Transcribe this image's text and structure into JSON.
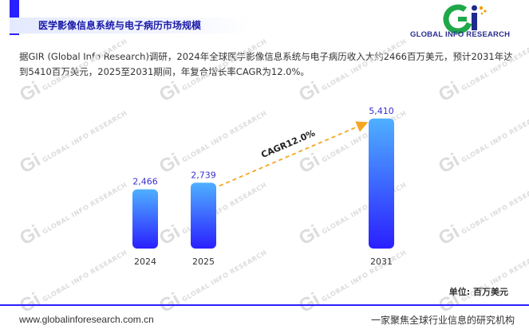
{
  "header": {
    "title": "医学影像信息系统与电子病历市场规模"
  },
  "logo": {
    "mark": "Gi",
    "text": "GLOBAL INFO RESEARCH",
    "colors": {
      "g": "#1fa84a",
      "i": "#1d2b8c",
      "dots": "#f0a000"
    }
  },
  "description": "据GIR (Global Info Research)调研，2024年全球医学影像信息系统与电子病历收入大约2466百万美元，预计2031年达到5410百万美元，2025至2031期间，年复合增长率CAGR为12.0%。",
  "watermark": {
    "mark": "Gi",
    "text": "GLOBAL INFO RESEARCH"
  },
  "chart_data": {
    "type": "bar",
    "categories": [
      "2024",
      "2025",
      "2031"
    ],
    "values": [
      2466,
      2739,
      5410
    ],
    "value_labels": [
      "2,466",
      "2,739",
      "5,410"
    ],
    "ylim": [
      0,
      5700
    ],
    "grid": false,
    "annotation": {
      "text": "CAGR12.0%",
      "from": "2025",
      "to": "2031",
      "style": "dashed-arrow",
      "color": "#f5a623"
    },
    "bar_gradient": [
      "#4fb0ff",
      "#2a1fff"
    ],
    "label_color": "#3a2fd0"
  },
  "unit_label": "单位: 百万美元",
  "footer": {
    "website": "www.globalinforesearch.com.cn",
    "slogan": "一家聚焦全球行业信息的研究机构"
  }
}
